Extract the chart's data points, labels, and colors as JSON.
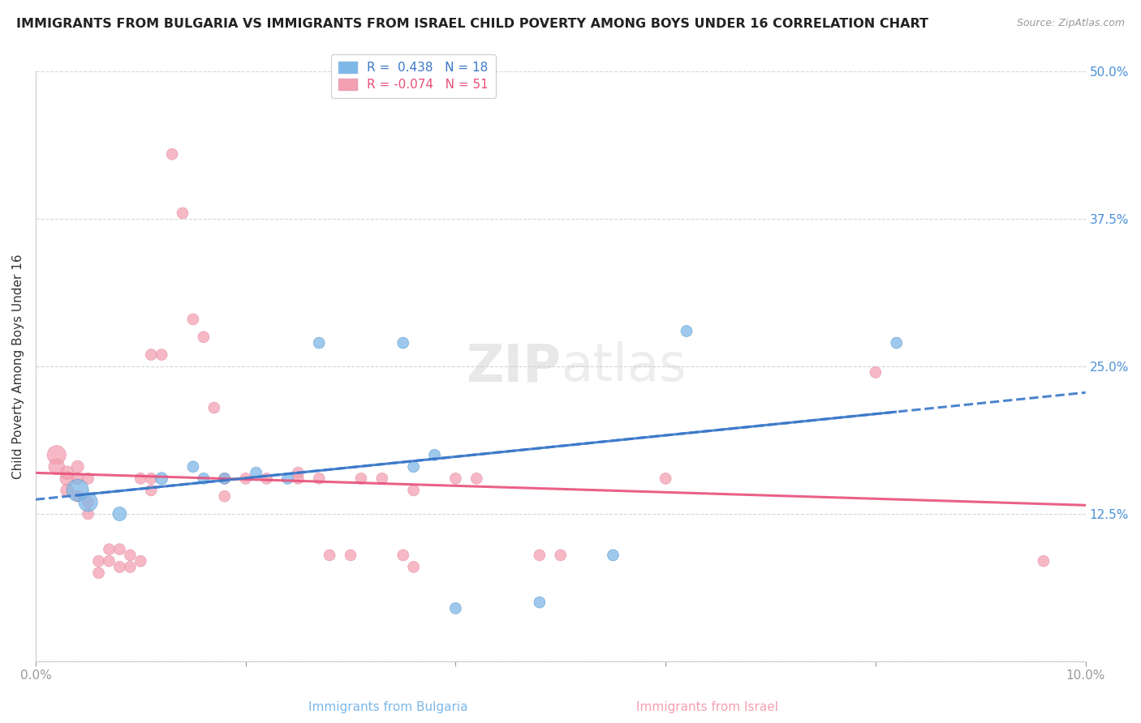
{
  "title": "IMMIGRANTS FROM BULGARIA VS IMMIGRANTS FROM ISRAEL CHILD POVERTY AMONG BOYS UNDER 16 CORRELATION CHART",
  "source": "Source: ZipAtlas.com",
  "ylabel": "Child Poverty Among Boys Under 16",
  "xlabel_bulgaria": "Immigrants from Bulgaria",
  "xlabel_israel": "Immigrants from Israel",
  "xlim": [
    0.0,
    0.1
  ],
  "ylim": [
    0.0,
    0.5
  ],
  "xticks": [
    0.0,
    0.02,
    0.04,
    0.06,
    0.08,
    0.1
  ],
  "xtick_labels": [
    "0.0%",
    "",
    "",
    "",
    "",
    "10.0%"
  ],
  "yticks": [
    0.0,
    0.125,
    0.25,
    0.375,
    0.5
  ],
  "ytick_labels": [
    "",
    "12.5%",
    "25.0%",
    "37.5%",
    "50.0%"
  ],
  "bulgaria_R": 0.438,
  "bulgaria_N": 18,
  "israel_R": -0.074,
  "israel_N": 51,
  "bulgaria_color": "#7eb8e8",
  "israel_color": "#f4a0b0",
  "bulgaria_line_color": "#3a78c9",
  "israel_line_color": "#e8507a",
  "watermark": "ZIPatlas",
  "bulgaria_scatter": [
    [
      0.004,
      0.145
    ],
    [
      0.005,
      0.135
    ],
    [
      0.008,
      0.125
    ],
    [
      0.012,
      0.155
    ],
    [
      0.015,
      0.165
    ],
    [
      0.016,
      0.155
    ],
    [
      0.018,
      0.155
    ],
    [
      0.021,
      0.16
    ],
    [
      0.024,
      0.155
    ],
    [
      0.027,
      0.27
    ],
    [
      0.035,
      0.27
    ],
    [
      0.036,
      0.165
    ],
    [
      0.038,
      0.175
    ],
    [
      0.04,
      0.045
    ],
    [
      0.048,
      0.05
    ],
    [
      0.055,
      0.09
    ],
    [
      0.062,
      0.28
    ],
    [
      0.082,
      0.27
    ]
  ],
  "israel_scatter": [
    [
      0.002,
      0.175
    ],
    [
      0.002,
      0.165
    ],
    [
      0.003,
      0.155
    ],
    [
      0.003,
      0.16
    ],
    [
      0.003,
      0.145
    ],
    [
      0.004,
      0.165
    ],
    [
      0.004,
      0.155
    ],
    [
      0.004,
      0.14
    ],
    [
      0.005,
      0.155
    ],
    [
      0.005,
      0.135
    ],
    [
      0.005,
      0.125
    ],
    [
      0.006,
      0.085
    ],
    [
      0.006,
      0.075
    ],
    [
      0.007,
      0.095
    ],
    [
      0.007,
      0.085
    ],
    [
      0.008,
      0.095
    ],
    [
      0.008,
      0.08
    ],
    [
      0.009,
      0.09
    ],
    [
      0.009,
      0.08
    ],
    [
      0.01,
      0.155
    ],
    [
      0.01,
      0.085
    ],
    [
      0.011,
      0.155
    ],
    [
      0.011,
      0.145
    ],
    [
      0.011,
      0.26
    ],
    [
      0.012,
      0.26
    ],
    [
      0.013,
      0.43
    ],
    [
      0.014,
      0.38
    ],
    [
      0.015,
      0.29
    ],
    [
      0.016,
      0.275
    ],
    [
      0.017,
      0.215
    ],
    [
      0.018,
      0.155
    ],
    [
      0.018,
      0.14
    ],
    [
      0.02,
      0.155
    ],
    [
      0.022,
      0.155
    ],
    [
      0.025,
      0.16
    ],
    [
      0.025,
      0.155
    ],
    [
      0.027,
      0.155
    ],
    [
      0.028,
      0.09
    ],
    [
      0.03,
      0.09
    ],
    [
      0.031,
      0.155
    ],
    [
      0.033,
      0.155
    ],
    [
      0.035,
      0.09
    ],
    [
      0.036,
      0.145
    ],
    [
      0.036,
      0.08
    ],
    [
      0.04,
      0.155
    ],
    [
      0.042,
      0.155
    ],
    [
      0.048,
      0.09
    ],
    [
      0.05,
      0.09
    ],
    [
      0.06,
      0.155
    ],
    [
      0.08,
      0.245
    ],
    [
      0.096,
      0.085
    ]
  ],
  "bulgaria_sizes": [
    380,
    280,
    150,
    120,
    100,
    100,
    100,
    100,
    100,
    100,
    100,
    100,
    100,
    100,
    100,
    100,
    100,
    100
  ],
  "israel_sizes": [
    280,
    200,
    160,
    140,
    130,
    120,
    110,
    100,
    100,
    100,
    100,
    100,
    100,
    100,
    100,
    100,
    100,
    100,
    100,
    100,
    100,
    100,
    100,
    100,
    100,
    100,
    100,
    100,
    100,
    100,
    100,
    100,
    100,
    100,
    100,
    100,
    100,
    100,
    100,
    100,
    100,
    100,
    100,
    100,
    100,
    100,
    100,
    100,
    100,
    100,
    100
  ]
}
